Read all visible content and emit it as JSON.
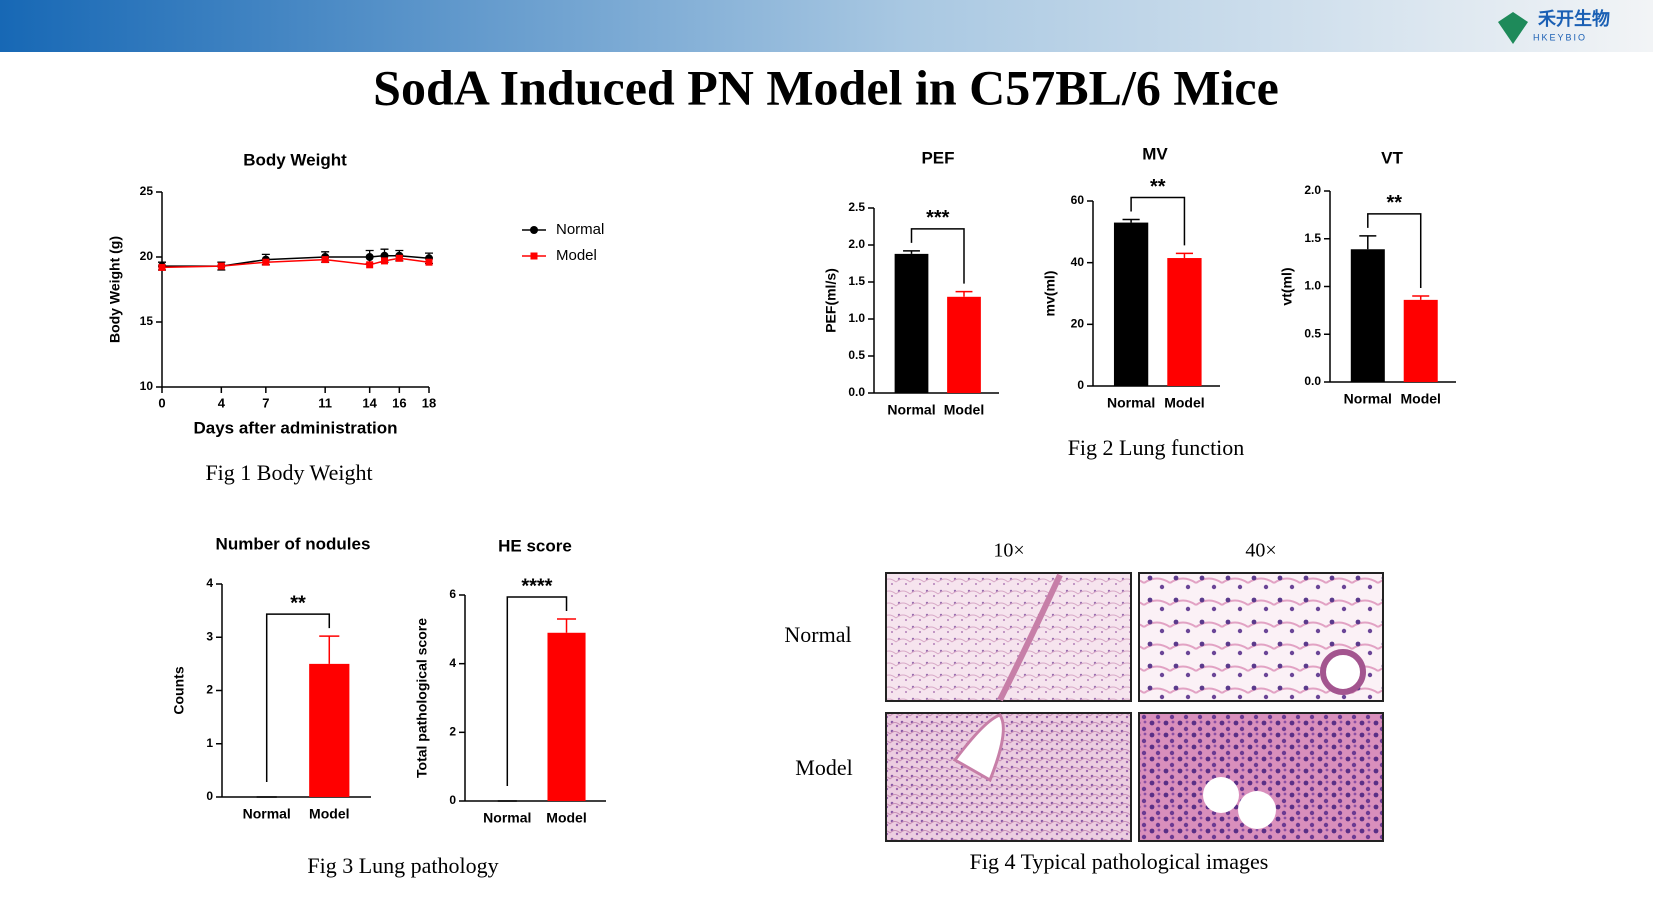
{
  "title": "SodA Induced PN Model in C57BL/6 Mice",
  "logo": {
    "name": "禾开生物",
    "sub": "HKEYBIO"
  },
  "captions": [
    "Fig 1 Body Weight",
    "Fig 2 Lung function",
    "Fig 3 Lung pathology",
    "Fig 4 Typical pathological images"
  ],
  "images": {
    "columns": [
      "10×",
      "40×"
    ],
    "rows": [
      "Normal",
      "Model"
    ]
  },
  "chart_data": [
    {
      "type": "line",
      "title": "Body Weight",
      "x_label": "Days after administration",
      "y_label": "Body Weight (g)",
      "x": [
        0,
        4,
        7,
        11,
        14,
        15,
        16,
        18
      ],
      "xlim": [
        0,
        18
      ],
      "xticks": [
        0,
        4,
        7,
        11,
        14,
        16,
        18
      ],
      "ylim": [
        10,
        25
      ],
      "yticks": [
        10,
        15,
        20,
        25
      ],
      "series": [
        {
          "name": "Normal",
          "color": "#000000",
          "values": [
            19.3,
            19.3,
            19.8,
            20.0,
            20.0,
            20.1,
            20.1,
            19.9
          ],
          "errors": [
            0.3,
            0.3,
            0.4,
            0.4,
            0.5,
            0.5,
            0.4,
            0.4
          ]
        },
        {
          "name": "Model",
          "color": "#ff0000",
          "values": [
            19.2,
            19.3,
            19.6,
            19.8,
            19.4,
            19.7,
            19.9,
            19.6
          ]
        }
      ]
    },
    {
      "type": "bar",
      "title": "PEF",
      "y_label": "PEF(ml/s)",
      "categories": [
        "Normal",
        "Model"
      ],
      "values": [
        1.88,
        1.3
      ],
      "errors": [
        0.04,
        0.07
      ],
      "colors": [
        "#000000",
        "#ff0000"
      ],
      "ylim": [
        0,
        2.5
      ],
      "yticks": [
        {
          "value": 0,
          "label": "0.0"
        },
        {
          "value": 0.5,
          "label": "0.5"
        },
        {
          "value": 1,
          "label": "1.0"
        },
        {
          "value": 1.5,
          "label": "1.5"
        },
        {
          "value": 2,
          "label": "2.0"
        },
        2.5
      ],
      "significance": "***"
    },
    {
      "type": "bar",
      "title": "MV",
      "y_label": "mv(ml)",
      "categories": [
        "Normal",
        "Model"
      ],
      "values": [
        53,
        41.5
      ],
      "errors": [
        1,
        1.5
      ],
      "colors": [
        "#000000",
        "#ff0000"
      ],
      "ylim": [
        0,
        60
      ],
      "yticks": [
        0,
        20,
        40,
        60
      ],
      "significance": "**"
    },
    {
      "type": "bar",
      "title": "VT",
      "y_label": "vt(ml)",
      "categories": [
        "Normal",
        "Model"
      ],
      "values": [
        1.39,
        0.86
      ],
      "errors": [
        0.14,
        0.04
      ],
      "colors": [
        "#000000",
        "#ff0000"
      ],
      "ylim": [
        0,
        2
      ],
      "yticks": [
        {
          "value": 0,
          "label": "0.0"
        },
        {
          "value": 0.5,
          "label": "0.5"
        },
        {
          "value": 1,
          "label": "1.0"
        },
        1.5,
        {
          "value": 2,
          "label": "2.0"
        }
      ],
      "significance": "**"
    },
    {
      "type": "bar",
      "title": "Number of nodules",
      "y_label": "Counts",
      "categories": [
        "Normal",
        "Model"
      ],
      "values": [
        0,
        2.5
      ],
      "errors": [
        0,
        0.52
      ],
      "colors": [
        "#000000",
        "#ff0000"
      ],
      "ylim": [
        0,
        4
      ],
      "yticks": [
        0,
        1,
        2,
        3,
        4
      ],
      "significance": "**"
    },
    {
      "type": "bar",
      "title": "HE score",
      "y_label": "Total pathological score",
      "categories": [
        "Normal",
        "Model"
      ],
      "values": [
        0,
        4.9
      ],
      "errors": [
        0,
        0.4
      ],
      "colors": [
        "#000000",
        "#ff0000"
      ],
      "ylim": [
        0,
        6
      ],
      "yticks": [
        0,
        2,
        4,
        6
      ],
      "significance": "****"
    }
  ]
}
